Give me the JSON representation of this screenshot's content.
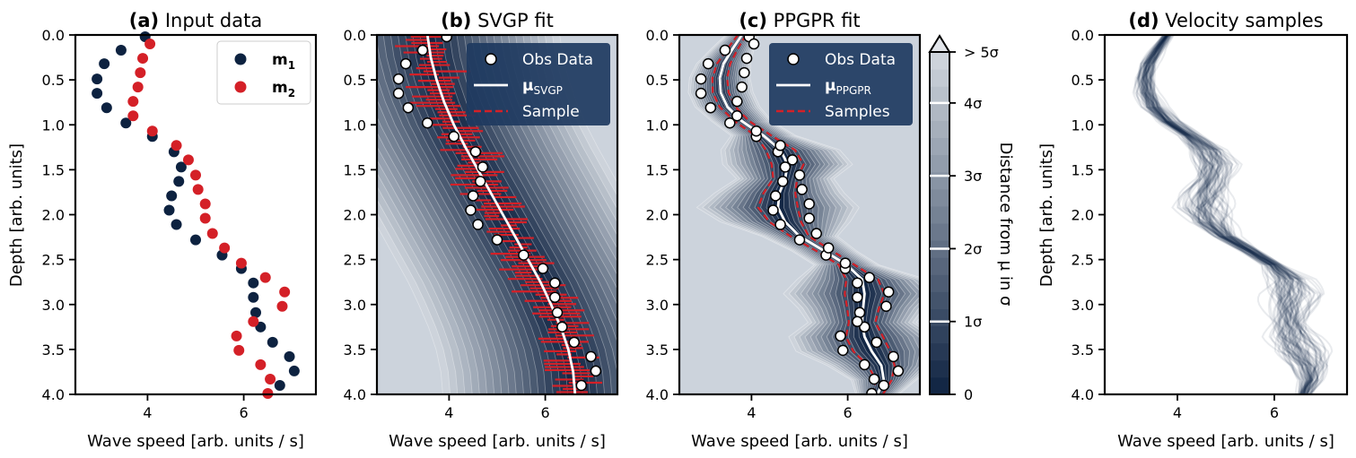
{
  "chart_data": [
    {
      "type": "scatter",
      "panel_label": "(a)",
      "title": "Input data",
      "xlabel": "Wave speed [arb. units / s]",
      "ylabel": "Depth [arb. units]",
      "xlim": [
        2.5,
        7.5
      ],
      "ylim": [
        4.0,
        0.0
      ],
      "xticks": [
        "4",
        "6"
      ],
      "yticks": [
        "0.0",
        "0.5",
        "1.0",
        "1.5",
        "2.0",
        "2.5",
        "3.0",
        "3.5",
        "4.0"
      ],
      "legend": {
        "placement": "top-right"
      },
      "series": [
        {
          "name": "m",
          "name_sub": "1",
          "color": "#0d2240",
          "points": [
            [
              3.95,
              0.02
            ],
            [
              3.45,
              0.17
            ],
            [
              3.1,
              0.32
            ],
            [
              2.95,
              0.49
            ],
            [
              2.95,
              0.65
            ],
            [
              3.15,
              0.81
            ],
            [
              3.55,
              0.98
            ],
            [
              4.1,
              1.13
            ],
            [
              4.55,
              1.3
            ],
            [
              4.7,
              1.47
            ],
            [
              4.65,
              1.63
            ],
            [
              4.5,
              1.79
            ],
            [
              4.45,
              1.95
            ],
            [
              4.6,
              2.11
            ],
            [
              5.0,
              2.28
            ],
            [
              5.55,
              2.45
            ],
            [
              5.95,
              2.6
            ],
            [
              6.2,
              2.76
            ],
            [
              6.2,
              2.92
            ],
            [
              6.25,
              3.09
            ],
            [
              6.35,
              3.25
            ],
            [
              6.6,
              3.42
            ],
            [
              6.95,
              3.58
            ],
            [
              7.05,
              3.74
            ],
            [
              6.75,
              3.9
            ]
          ]
        },
        {
          "name": "m",
          "name_sub": "2",
          "color": "#d42027",
          "points": [
            [
              4.05,
              0.1
            ],
            [
              3.9,
              0.26
            ],
            [
              3.85,
              0.42
            ],
            [
              3.8,
              0.58
            ],
            [
              3.7,
              0.74
            ],
            [
              3.7,
              0.9
            ],
            [
              4.1,
              1.07
            ],
            [
              4.6,
              1.23
            ],
            [
              4.85,
              1.39
            ],
            [
              5.0,
              1.56
            ],
            [
              5.05,
              1.72
            ],
            [
              5.2,
              1.88
            ],
            [
              5.2,
              2.04
            ],
            [
              5.35,
              2.21
            ],
            [
              5.6,
              2.37
            ],
            [
              5.95,
              2.54
            ],
            [
              6.45,
              2.7
            ],
            [
              6.85,
              2.86
            ],
            [
              6.8,
              3.02
            ],
            [
              6.2,
              3.19
            ],
            [
              5.85,
              3.35
            ],
            [
              5.9,
              3.51
            ],
            [
              6.35,
              3.67
            ],
            [
              6.55,
              3.83
            ],
            [
              6.5,
              3.99
            ]
          ]
        }
      ]
    },
    {
      "type": "line",
      "panel_label": "(b)",
      "title": "SVGP fit",
      "xlabel": "Wave speed [arb. units / s]",
      "xlim": [
        2.5,
        7.5
      ],
      "ylim": [
        4.0,
        0.0
      ],
      "xticks": [
        "4",
        "6"
      ],
      "yticks": [
        "0.0",
        "0.5",
        "1.0",
        "1.5",
        "2.0",
        "2.5",
        "3.0",
        "3.5",
        "4.0"
      ],
      "legend": {
        "placement": "top-right",
        "entries": [
          {
            "label": "Obs Data"
          },
          {
            "label": "μ",
            "sub": "SVGP"
          },
          {
            "label": "Sample"
          }
        ]
      },
      "mean": {
        "depth": [
          0.0,
          0.25,
          0.5,
          0.75,
          1.0,
          1.25,
          1.5,
          1.75,
          2.0,
          2.25,
          2.5,
          2.75,
          3.0,
          3.25,
          3.5,
          3.75,
          4.0
        ],
        "speed": [
          3.55,
          3.62,
          3.74,
          3.9,
          4.1,
          4.34,
          4.6,
          4.86,
          5.12,
          5.38,
          5.64,
          5.9,
          6.12,
          6.32,
          6.48,
          6.58,
          6.62
        ],
        "sigma": 0.55
      }
    },
    {
      "type": "line",
      "panel_label": "(c)",
      "title": "PPGPR fit",
      "xlabel": "Wave speed [arb. units / s]",
      "xlim": [
        2.5,
        7.5
      ],
      "ylim": [
        4.0,
        0.0
      ],
      "xticks": [
        "4",
        "6"
      ],
      "yticks": [
        "0.0",
        "0.5",
        "1.0",
        "1.5",
        "2.0",
        "2.5",
        "3.0",
        "3.5",
        "4.0"
      ],
      "legend": {
        "placement": "top-right",
        "entries": [
          {
            "label": "Obs Data"
          },
          {
            "label": "μ",
            "sub": "PPGPR"
          },
          {
            "label": "Samples"
          }
        ]
      },
      "mean": {
        "depth": [
          0.0,
          0.16,
          0.32,
          0.48,
          0.64,
          0.8,
          0.96,
          1.12,
          1.28,
          1.44,
          1.6,
          1.76,
          1.92,
          2.08,
          2.24,
          2.4,
          2.56,
          2.72,
          2.88,
          3.04,
          3.2,
          3.36,
          3.52,
          3.68,
          3.84,
          4.0
        ],
        "speed": [
          3.8,
          3.6,
          3.42,
          3.34,
          3.36,
          3.5,
          3.8,
          4.25,
          4.6,
          4.75,
          4.7,
          4.58,
          4.55,
          4.7,
          5.0,
          5.5,
          5.98,
          6.3,
          6.35,
          6.32,
          6.3,
          6.35,
          6.5,
          6.7,
          6.75,
          6.62
        ],
        "width": [
          0.15,
          0.2,
          0.25,
          0.28,
          0.3,
          0.3,
          0.28,
          0.3,
          0.55,
          0.6,
          0.45,
          0.6,
          0.75,
          0.6,
          0.35,
          0.3,
          0.3,
          0.6,
          0.75,
          0.6,
          0.5,
          0.7,
          0.7,
          0.5,
          0.3,
          0.2
        ]
      },
      "colorbar": {
        "label": "Distance from μ in σ",
        "ticks": [
          "0",
          "1σ",
          "2σ",
          "3σ",
          "4σ",
          "> 5σ"
        ],
        "extend": "max"
      }
    },
    {
      "type": "line",
      "panel_label": "(d)",
      "title": "Velocity samples",
      "xlabel": "Wave speed [arb. units / s]",
      "ylabel": "Depth [arb. units]",
      "xlim": [
        2.5,
        7.5
      ],
      "ylim": [
        4.0,
        0.0
      ],
      "xticks": [
        "4",
        "6"
      ],
      "yticks": [
        "0.0",
        "0.5",
        "1.0",
        "1.5",
        "2.0",
        "2.5",
        "3.0",
        "3.5",
        "4.0"
      ],
      "samples": {
        "count": 80,
        "color": "#0d2240"
      }
    }
  ]
}
